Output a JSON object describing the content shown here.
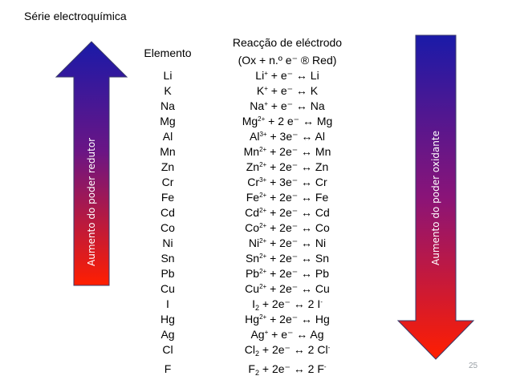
{
  "title": "Série electroquímica",
  "left_arrow_label": "Aumento do poder redutor",
  "right_arrow_label": "Aumento do poder oxidante",
  "header": {
    "element": "Elemento",
    "reaction_line1": "Reacção de eléctrodo",
    "reaction_line2": "(Ox + n.º e⁻ ® Red)"
  },
  "rows": [
    {
      "element": "Li",
      "ion": "Li",
      "charge": "+",
      "coef": "",
      "product": "Li"
    },
    {
      "element": "K",
      "ion": "K",
      "charge": "+",
      "coef": "",
      "product": "K"
    },
    {
      "element": "Na",
      "ion": "Na",
      "charge": "+",
      "coef": "",
      "product": "Na"
    },
    {
      "element": "Mg",
      "ion": "Mg",
      "charge": "2+",
      "coef": "2 ",
      "product": "Mg"
    },
    {
      "element": "Al",
      "ion": "Al",
      "charge": "3+",
      "coef": "3",
      "product": "Al"
    },
    {
      "element": "Mn",
      "ion": "Mn",
      "charge": "2+",
      "coef": "2",
      "product": "Mn"
    },
    {
      "element": "Zn",
      "ion": "Zn",
      "charge": "2+",
      "coef": "2",
      "product": "Zn"
    },
    {
      "element": "Cr",
      "ion": "Cr",
      "charge": "3+",
      "coef": "3",
      "product": "Cr"
    },
    {
      "element": "Fe",
      "ion": "Fe",
      "charge": "2+",
      "coef": "2",
      "product": "Fe"
    },
    {
      "element": "Cd",
      "ion": "Cd",
      "charge": "2+",
      "coef": "2",
      "product": "Cd"
    },
    {
      "element": "Co",
      "ion": "Co",
      "charge": "2+",
      "coef": "2",
      "product": "Co"
    },
    {
      "element": "Ni",
      "ion": "Ni",
      "charge": "2+",
      "coef": "2",
      "product": "Ni"
    },
    {
      "element": "Sn",
      "ion": "Sn",
      "charge": "2+",
      "coef": "2",
      "product": "Sn"
    },
    {
      "element": "Pb",
      "ion": "Pb",
      "charge": "2+",
      "coef": "2",
      "product": "Pb"
    },
    {
      "element": "Cu",
      "ion": "Cu",
      "charge": "2+",
      "coef": "2",
      "product": "Cu"
    },
    {
      "element": "I",
      "ion": "I",
      "sub": "2",
      "coef": "2",
      "product": "2 I",
      "prod_charge": "-"
    },
    {
      "element": "Hg",
      "ion": "Hg",
      "charge": "2+",
      "coef": "2",
      "product": " Hg"
    },
    {
      "element": "Ag",
      "ion": "Ag",
      "charge": "+",
      "coef": "",
      "product": "Ag"
    },
    {
      "element": "Cl",
      "ion": "Cl",
      "sub": "2",
      "coef": "2",
      "product": "2 Cl",
      "prod_charge": "-"
    },
    {
      "element": "F",
      "ion": "F",
      "sub": "2",
      "coef": "2",
      "product": "2 F",
      "prod_charge": "-"
    }
  ],
  "page_number": "25",
  "colors": {
    "arrow_top": "#1a1aa8",
    "arrow_mid": "#8a1478",
    "arrow_bottom": "#ff1e00"
  }
}
